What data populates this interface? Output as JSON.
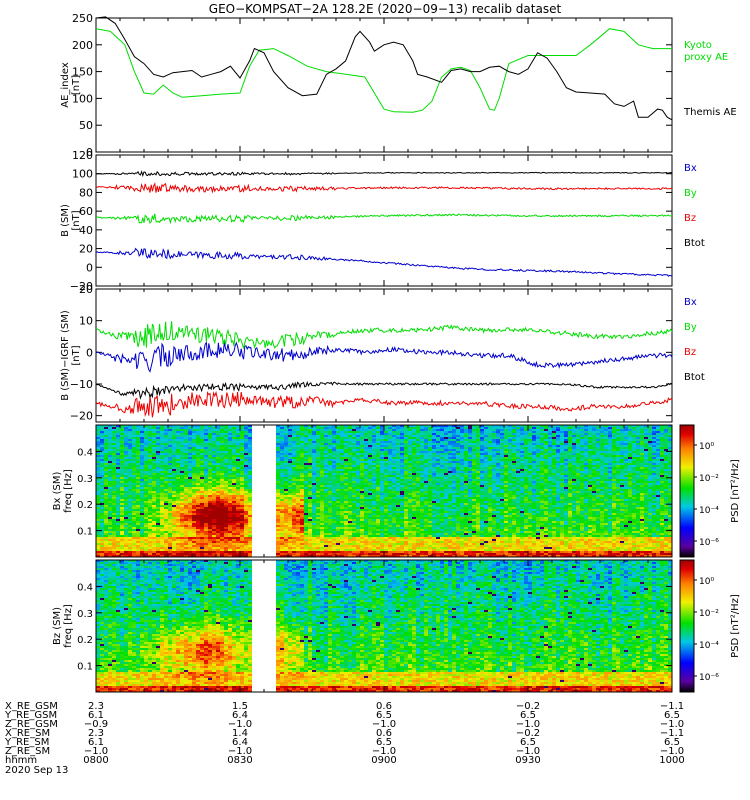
{
  "title": "GEO−KOMPSAT−2A 128.2E (2020−09−13) recalib dataset",
  "chart_data": [
    {
      "type": "line",
      "id": "ae",
      "ylabel": [
        "AE_index",
        "[nT]"
      ],
      "ylim": [
        0,
        250
      ],
      "yticks": [
        0,
        50,
        100,
        150,
        200,
        250
      ],
      "xlim": [
        480,
        600
      ],
      "xticks": [
        "0800",
        "0830",
        "0900",
        "0930",
        "1000"
      ],
      "series": [
        {
          "name": "Kyoto proxy AE",
          "label_lines": [
            "Kyoto",
            "proxy AE"
          ],
          "color": "#00dd00",
          "points": [
            [
              480,
              230
            ],
            [
              483,
              225
            ],
            [
              486,
              200
            ],
            [
              488,
              150
            ],
            [
              490,
              110
            ],
            [
              492,
              108
            ],
            [
              494,
              125
            ],
            [
              496,
              110
            ],
            [
              498,
              102
            ],
            [
              502,
              105
            ],
            [
              506,
              108
            ],
            [
              510,
              110
            ],
            [
              512,
              160
            ],
            [
              514,
              190
            ],
            [
              517,
              193
            ],
            [
              520,
              180
            ],
            [
              524,
              160
            ],
            [
              528,
              150
            ],
            [
              532,
              145
            ],
            [
              536,
              140
            ],
            [
              538,
              110
            ],
            [
              540,
              80
            ],
            [
              542,
              75
            ],
            [
              546,
              74
            ],
            [
              548,
              78
            ],
            [
              550,
              95
            ],
            [
              552,
              140
            ],
            [
              554,
              155
            ],
            [
              556,
              158
            ],
            [
              558,
              152
            ],
            [
              560,
              120
            ],
            [
              562,
              80
            ],
            [
              563,
              78
            ],
            [
              564,
              100
            ],
            [
              566,
              165
            ],
            [
              570,
              180
            ],
            [
              580,
              180
            ],
            [
              583,
              200
            ],
            [
              587,
              230
            ],
            [
              590,
              225
            ],
            [
              593,
              200
            ],
            [
              596,
              193
            ],
            [
              600,
              193
            ]
          ]
        },
        {
          "name": "Themis AE",
          "label_lines": [
            "Themis AE"
          ],
          "color": "#000000",
          "points": [
            [
              480,
              250
            ],
            [
              482,
              252
            ],
            [
              484,
              240
            ],
            [
              486,
              210
            ],
            [
              488,
              178
            ],
            [
              490,
              165
            ],
            [
              492,
              145
            ],
            [
              494,
              140
            ],
            [
              496,
              148
            ],
            [
              498,
              150
            ],
            [
              500,
              152
            ],
            [
              502,
              140
            ],
            [
              504,
              145
            ],
            [
              506,
              150
            ],
            [
              508,
              160
            ],
            [
              510,
              138
            ],
            [
              512,
              170
            ],
            [
              513,
              193
            ],
            [
              515,
              185
            ],
            [
              517,
              150
            ],
            [
              520,
              120
            ],
            [
              523,
              105
            ],
            [
              526,
              108
            ],
            [
              528,
              145
            ],
            [
              530,
              155
            ],
            [
              532,
              170
            ],
            [
              534,
              215
            ],
            [
              535,
              225
            ],
            [
              537,
              205
            ],
            [
              538,
              188
            ],
            [
              540,
              200
            ],
            [
              542,
              205
            ],
            [
              544,
              200
            ],
            [
              546,
              170
            ],
            [
              547,
              145
            ],
            [
              549,
              140
            ],
            [
              552,
              130
            ],
            [
              554,
              152
            ],
            [
              556,
              155
            ],
            [
              558,
              150
            ],
            [
              560,
              150
            ],
            [
              562,
              158
            ],
            [
              564,
              160
            ],
            [
              566,
              150
            ],
            [
              568,
              145
            ],
            [
              570,
              155
            ],
            [
              572,
              185
            ],
            [
              574,
              175
            ],
            [
              576,
              150
            ],
            [
              578,
              120
            ],
            [
              580,
              112
            ],
            [
              583,
              110
            ],
            [
              586,
              108
            ],
            [
              588,
              90
            ],
            [
              590,
              85
            ],
            [
              592,
              95
            ],
            [
              593,
              65
            ],
            [
              595,
              65
            ],
            [
              597,
              80
            ],
            [
              598,
              78
            ],
            [
              599,
              65
            ],
            [
              600,
              60
            ]
          ]
        }
      ]
    },
    {
      "type": "line",
      "id": "b",
      "ylabel": [
        "B (SM)",
        "[nT]"
      ],
      "ylim": [
        -20,
        120
      ],
      "yticks": [
        -20,
        0,
        20,
        40,
        60,
        80,
        100,
        120
      ],
      "xlim": [
        480,
        600
      ],
      "series": [
        {
          "name": "Bx",
          "color": "#0000cc",
          "points": [
            [
              480,
              16
            ],
            [
              495,
              14
            ],
            [
              510,
              12
            ],
            [
              525,
              10
            ],
            [
              535,
              7
            ],
            [
              545,
              3
            ],
            [
              555,
              -1
            ],
            [
              565,
              -3
            ],
            [
              575,
              -4
            ],
            [
              585,
              -6
            ],
            [
              600,
              -9
            ]
          ]
        },
        {
          "name": "By",
          "color": "#00dd00",
          "points": [
            [
              480,
              53
            ],
            [
              495,
              52
            ],
            [
              510,
              52
            ],
            [
              525,
              53
            ],
            [
              540,
              55
            ],
            [
              555,
              56
            ],
            [
              570,
              55
            ],
            [
              585,
              55
            ],
            [
              600,
              55
            ]
          ]
        },
        {
          "name": "Bz",
          "color": "#ee0000",
          "points": [
            [
              480,
              86
            ],
            [
              495,
              84
            ],
            [
              510,
              84
            ],
            [
              525,
              84
            ],
            [
              540,
              85
            ],
            [
              555,
              85
            ],
            [
              570,
              84
            ],
            [
              585,
              84
            ],
            [
              600,
              84
            ]
          ]
        },
        {
          "name": "Btot",
          "color": "#000000",
          "points": [
            [
              480,
              100
            ],
            [
              495,
              100
            ],
            [
              510,
              100
            ],
            [
              525,
              100
            ],
            [
              540,
              101
            ],
            [
              555,
              101
            ],
            [
              570,
              101
            ],
            [
              585,
              101
            ],
            [
              600,
              101
            ]
          ]
        }
      ]
    },
    {
      "type": "line",
      "id": "dbi",
      "ylabel": [
        "B (SM)−IGRF (SM)",
        "[nT]"
      ],
      "ylim": [
        -22,
        20
      ],
      "yticks": [
        -20,
        -10,
        0,
        10,
        20
      ],
      "xlim": [
        480,
        600
      ],
      "series": [
        {
          "name": "Bx",
          "color": "#0000cc",
          "points": [
            [
              480,
              0
            ],
            [
              485,
              -2
            ],
            [
              490,
              -3
            ],
            [
              494,
              -1
            ],
            [
              500,
              0
            ],
            [
              506,
              1
            ],
            [
              512,
              0
            ],
            [
              518,
              -1
            ],
            [
              524,
              0
            ],
            [
              530,
              1
            ],
            [
              536,
              0
            ],
            [
              542,
              1
            ],
            [
              548,
              0
            ],
            [
              554,
              0
            ],
            [
              560,
              -1
            ],
            [
              566,
              -1
            ],
            [
              572,
              -4
            ],
            [
              578,
              -4
            ],
            [
              584,
              -3
            ],
            [
              590,
              -2
            ],
            [
              596,
              -1
            ],
            [
              600,
              -1
            ]
          ]
        },
        {
          "name": "By",
          "color": "#00dd00",
          "points": [
            [
              480,
              7
            ],
            [
              485,
              5
            ],
            [
              490,
              5
            ],
            [
              494,
              6
            ],
            [
              500,
              6
            ],
            [
              506,
              5
            ],
            [
              512,
              3
            ],
            [
              518,
              3
            ],
            [
              524,
              5
            ],
            [
              530,
              6
            ],
            [
              536,
              7
            ],
            [
              542,
              7
            ],
            [
              548,
              7
            ],
            [
              554,
              8
            ],
            [
              560,
              7
            ],
            [
              566,
              7
            ],
            [
              572,
              7
            ],
            [
              578,
              6
            ],
            [
              584,
              5
            ],
            [
              590,
              5
            ],
            [
              596,
              6
            ],
            [
              600,
              7
            ]
          ]
        },
        {
          "name": "Bz",
          "color": "#ee0000",
          "points": [
            [
              480,
              -16
            ],
            [
              485,
              -18
            ],
            [
              490,
              -18
            ],
            [
              494,
              -17
            ],
            [
              500,
              -15
            ],
            [
              506,
              -15
            ],
            [
              512,
              -15
            ],
            [
              518,
              -16
            ],
            [
              524,
              -15
            ],
            [
              530,
              -16
            ],
            [
              536,
              -15
            ],
            [
              542,
              -16
            ],
            [
              548,
              -16
            ],
            [
              554,
              -16
            ],
            [
              560,
              -16
            ],
            [
              566,
              -17
            ],
            [
              572,
              -17
            ],
            [
              578,
              -18
            ],
            [
              584,
              -17
            ],
            [
              590,
              -17
            ],
            [
              596,
              -16
            ],
            [
              600,
              -15
            ]
          ]
        },
        {
          "name": "Btot",
          "color": "#000000",
          "points": [
            [
              480,
              -10
            ],
            [
              485,
              -13
            ],
            [
              490,
              -13
            ],
            [
              494,
              -12
            ],
            [
              500,
              -11
            ],
            [
              506,
              -11
            ],
            [
              512,
              -11
            ],
            [
              518,
              -11
            ],
            [
              524,
              -10
            ],
            [
              530,
              -10
            ],
            [
              536,
              -10
            ],
            [
              542,
              -10
            ],
            [
              548,
              -10
            ],
            [
              554,
              -10
            ],
            [
              560,
              -10
            ],
            [
              566,
              -10
            ],
            [
              572,
              -10
            ],
            [
              578,
              -10
            ],
            [
              584,
              -11
            ],
            [
              590,
              -11
            ],
            [
              596,
              -11
            ],
            [
              600,
              -10
            ]
          ]
        }
      ]
    },
    {
      "type": "heatmap",
      "id": "bx_psd",
      "ylabel": [
        "Bx (SM)",
        "freq [Hz]"
      ],
      "ylim": [
        0,
        0.5
      ],
      "yticks": [
        0.1,
        0.2,
        0.3,
        0.4
      ],
      "xlim": [
        480,
        600
      ],
      "gap": [
        513,
        517
      ],
      "power_peak": [
        0.16,
        505,
        0.55
      ],
      "colorbar": {
        "label": "PSD [nT²/Hz]",
        "ticks": [
          "10⁰",
          "10⁻²",
          "10⁻⁴",
          "10⁻⁶"
        ]
      }
    },
    {
      "type": "heatmap",
      "id": "bz_psd",
      "ylabel": [
        "Bz (SM)",
        "freq [Hz]"
      ],
      "ylim": [
        0,
        0.5
      ],
      "yticks": [
        0.1,
        0.2,
        0.3,
        0.4
      ],
      "xlim": [
        480,
        600
      ],
      "gap": [
        513,
        517
      ],
      "power_peak": [
        0.16,
        502,
        0.35
      ],
      "colorbar": {
        "label": "PSD [nT²/Hz]",
        "ticks": [
          "10⁰",
          "10⁻²",
          "10⁻⁴",
          "10⁻⁶"
        ]
      }
    }
  ],
  "ephemeris": {
    "rows": [
      {
        "label": "X_RE_GSM",
        "values": [
          "2.3",
          "1.5",
          "0.6",
          "−0.2",
          "−1.1"
        ]
      },
      {
        "label": "Y_RE_GSM",
        "values": [
          "6.1",
          "6.4",
          "6.5",
          "6.5",
          "6.5"
        ]
      },
      {
        "label": "Z_RE_GSM",
        "values": [
          "−0.9",
          "−1.0",
          "−1.0",
          "−1.0",
          "−1.0"
        ]
      },
      {
        "label": "X_RE_SM",
        "values": [
          "2.3",
          "1.4",
          "0.6",
          "−0.2",
          "−1.1"
        ]
      },
      {
        "label": "Y_RE_SM",
        "values": [
          "6.1",
          "6.4",
          "6.5",
          "6.5",
          "6.5"
        ]
      },
      {
        "label": "Z_RE_SM",
        "values": [
          "−1.0",
          "−1.0",
          "−1.0",
          "−1.0",
          "−1.0"
        ]
      },
      {
        "label": "hhmm",
        "values": [
          "0800",
          "0830",
          "0900",
          "0930",
          "1000"
        ]
      }
    ],
    "date": "2020 Sep 13"
  }
}
